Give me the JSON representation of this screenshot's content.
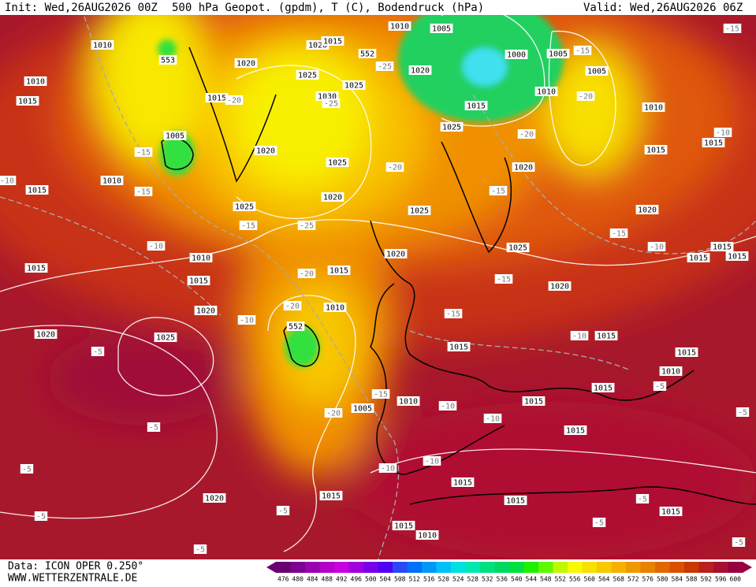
{
  "header": {
    "init": "Init: Wed,26AUG2026 00Z",
    "title": "500 hPa Geopot. (gpdm), T (C), Bodendruck (hPa)",
    "valid": "Valid: Wed,26AUG2026 06Z"
  },
  "map": {
    "pressure_labels": [
      "1010",
      "1010",
      "1015",
      "1005",
      "1010",
      "1015",
      "1010",
      "1015",
      "1015",
      "1020",
      "1020",
      "1025",
      "1020",
      "1015",
      "1005",
      "1010",
      "1015",
      "1020",
      "1015",
      "1010",
      "1020",
      "1025",
      "1025",
      "1020",
      "1025",
      "1030",
      "1025",
      "1025",
      "1020",
      "1015",
      "1020",
      "1015",
      "1010",
      "1005",
      "1000",
      "1005",
      "1020",
      "1015",
      "1010",
      "1025",
      "1020",
      "1025",
      "1020",
      "1005",
      "1010",
      "1015",
      "1015",
      "1020",
      "1015",
      "1015",
      "1015",
      "1015",
      "1015",
      "1010",
      "1015",
      "1015",
      "1015",
      "1015",
      "1015",
      "1015",
      "1015",
      "1010"
    ],
    "temperature_labels": [
      "-15",
      "-15",
      "-20",
      "-10",
      "-25",
      "-25",
      "-20",
      "-15",
      "-15",
      "-20",
      "-15",
      "-20",
      "-15",
      "-25",
      "-10",
      "-15",
      "-10",
      "-15",
      "-20",
      "-20",
      "-10",
      "-15",
      "-10",
      "-5",
      "-15",
      "-20",
      "-10",
      "-10",
      "-5",
      "-5",
      "-5",
      "-10",
      "-10",
      "-5",
      "-5",
      "-5",
      "-5",
      "-5",
      "-5",
      "-5",
      "-10"
    ],
    "height_labels": [
      "553",
      "552",
      "552"
    ]
  },
  "footer": {
    "source": "Data: ICON OPER 0.250°",
    "website": "WWW.WETTERZENTRALE.DE"
  },
  "colorbar": {
    "ticks": [
      476,
      480,
      484,
      488,
      492,
      496,
      500,
      504,
      508,
      512,
      516,
      520,
      524,
      528,
      532,
      536,
      540,
      544,
      548,
      552,
      556,
      560,
      564,
      568,
      572,
      576,
      580,
      584,
      588,
      592,
      596,
      600
    ],
    "colors": [
      "#6a0070",
      "#7e0090",
      "#9a00b0",
      "#b400c8",
      "#c800e0",
      "#a000e0",
      "#7800e8",
      "#5000f0",
      "#2848f8",
      "#0070f8",
      "#0098f8",
      "#00c0f8",
      "#00e0e0",
      "#00e8b0",
      "#00e080",
      "#00d860",
      "#00e040",
      "#20f000",
      "#60f800",
      "#c0f800",
      "#f8f800",
      "#f8e000",
      "#f8c800",
      "#f8b000",
      "#f09800",
      "#e88000",
      "#e06800",
      "#d85000",
      "#c83800",
      "#b82020",
      "#a81030",
      "#980040"
    ]
  }
}
